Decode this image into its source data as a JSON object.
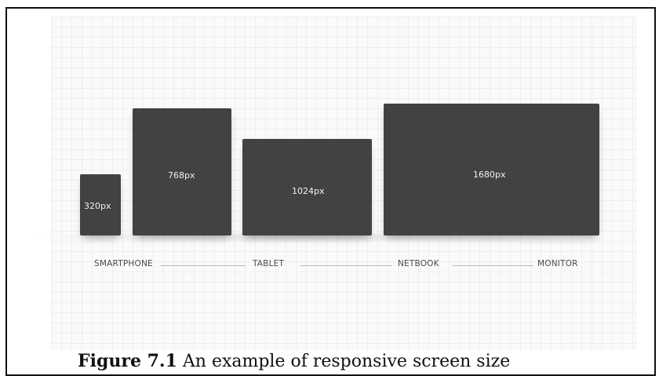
{
  "devices": [
    {
      "name": "smartphone",
      "width_label": "320px"
    },
    {
      "name": "tablet-portrait",
      "width_label": "768px"
    },
    {
      "name": "tablet-landscape",
      "width_label": "1024px"
    },
    {
      "name": "monitor",
      "width_label": "1680px"
    }
  ],
  "categories": [
    "SMARTPHONE",
    "TABLET",
    "NETBOOK",
    "MONITOR"
  ],
  "caption": {
    "label": "Figure 7.1",
    "text": "An example of responsive screen size"
  },
  "colors": {
    "device_fill": "#424242",
    "device_text": "#f2f2f2",
    "category_text": "#4a4a4a",
    "divider_line": "#b8b8b8",
    "grid_background": "#fafafa",
    "border": "#111111"
  }
}
